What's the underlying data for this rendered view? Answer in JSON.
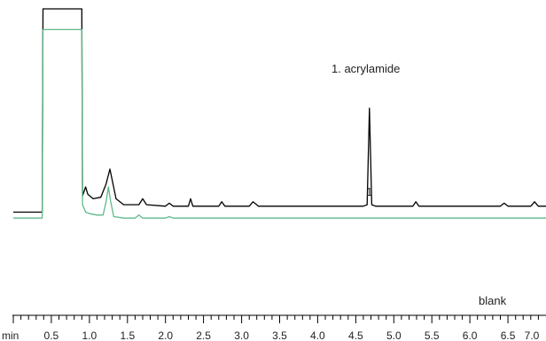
{
  "chart_data": {
    "type": "line",
    "title": "",
    "xlabel": "",
    "ylabel": "",
    "x_unit_label": "min",
    "xlim": [
      0.0,
      7.0
    ],
    "ylim": [
      0,
      100
    ],
    "x_ticks": [
      "0.5",
      "1.0",
      "1.5",
      "2.0",
      "2.5",
      "3.0",
      "3.5",
      "4.0",
      "4.5",
      "5.0",
      "5.5",
      "6.0",
      "6.5",
      "7.0"
    ],
    "annotations": [
      "1. acrylamide"
    ],
    "peak_labels": [
      {
        "label": "1",
        "x": 4.68
      }
    ],
    "colors": {
      "sample": "#000000",
      "blank": "#5fb98a"
    },
    "series": [
      {
        "name": "",
        "color": "#000000",
        "x": [
          0.0,
          0.38,
          0.39,
          0.9,
          0.91,
          0.95,
          0.98,
          1.05,
          1.15,
          1.22,
          1.27,
          1.31,
          1.35,
          1.45,
          1.65,
          1.7,
          1.75,
          2.0,
          2.05,
          2.1,
          2.3,
          2.33,
          2.36,
          2.7,
          2.74,
          2.78,
          3.1,
          3.15,
          3.22,
          4.6,
          4.65,
          4.68,
          4.71,
          4.76,
          5.25,
          5.29,
          5.33,
          6.4,
          6.45,
          6.5,
          6.8,
          6.85,
          6.9,
          7.0
        ],
        "y": [
          31.5,
          31.5,
          100,
          100,
          37,
          40,
          37.5,
          36,
          36.5,
          41,
          46,
          41,
          36,
          34,
          34,
          36,
          34,
          33.5,
          34.5,
          33.5,
          33.5,
          36,
          33.5,
          33.5,
          35,
          33.5,
          33.5,
          35,
          33.5,
          33.5,
          34,
          66.5,
          34,
          33.5,
          33.5,
          35,
          33.5,
          33.5,
          34.5,
          33.5,
          33.5,
          35,
          33.5,
          33.5
        ]
      },
      {
        "name": "blank",
        "color": "#5fb98a",
        "x": [
          0.0,
          0.38,
          0.39,
          0.9,
          0.91,
          0.95,
          1.0,
          1.1,
          1.18,
          1.22,
          1.25,
          1.28,
          1.32,
          1.45,
          1.6,
          1.65,
          1.7,
          1.9,
          2.0,
          2.05,
          2.1,
          2.5,
          3.0,
          4.0,
          5.0,
          6.0,
          7.0
        ],
        "y": [
          29.5,
          29.5,
          93,
          93,
          34,
          31.5,
          31,
          30.5,
          30.5,
          35,
          40,
          35,
          30,
          29.5,
          29.5,
          30.5,
          29.5,
          29.5,
          29.5,
          30,
          29.5,
          29.5,
          29.5,
          29.5,
          29.5,
          29.5,
          29.5
        ]
      }
    ],
    "series_labels": [
      "blank"
    ],
    "grid": false,
    "legend": "none"
  }
}
